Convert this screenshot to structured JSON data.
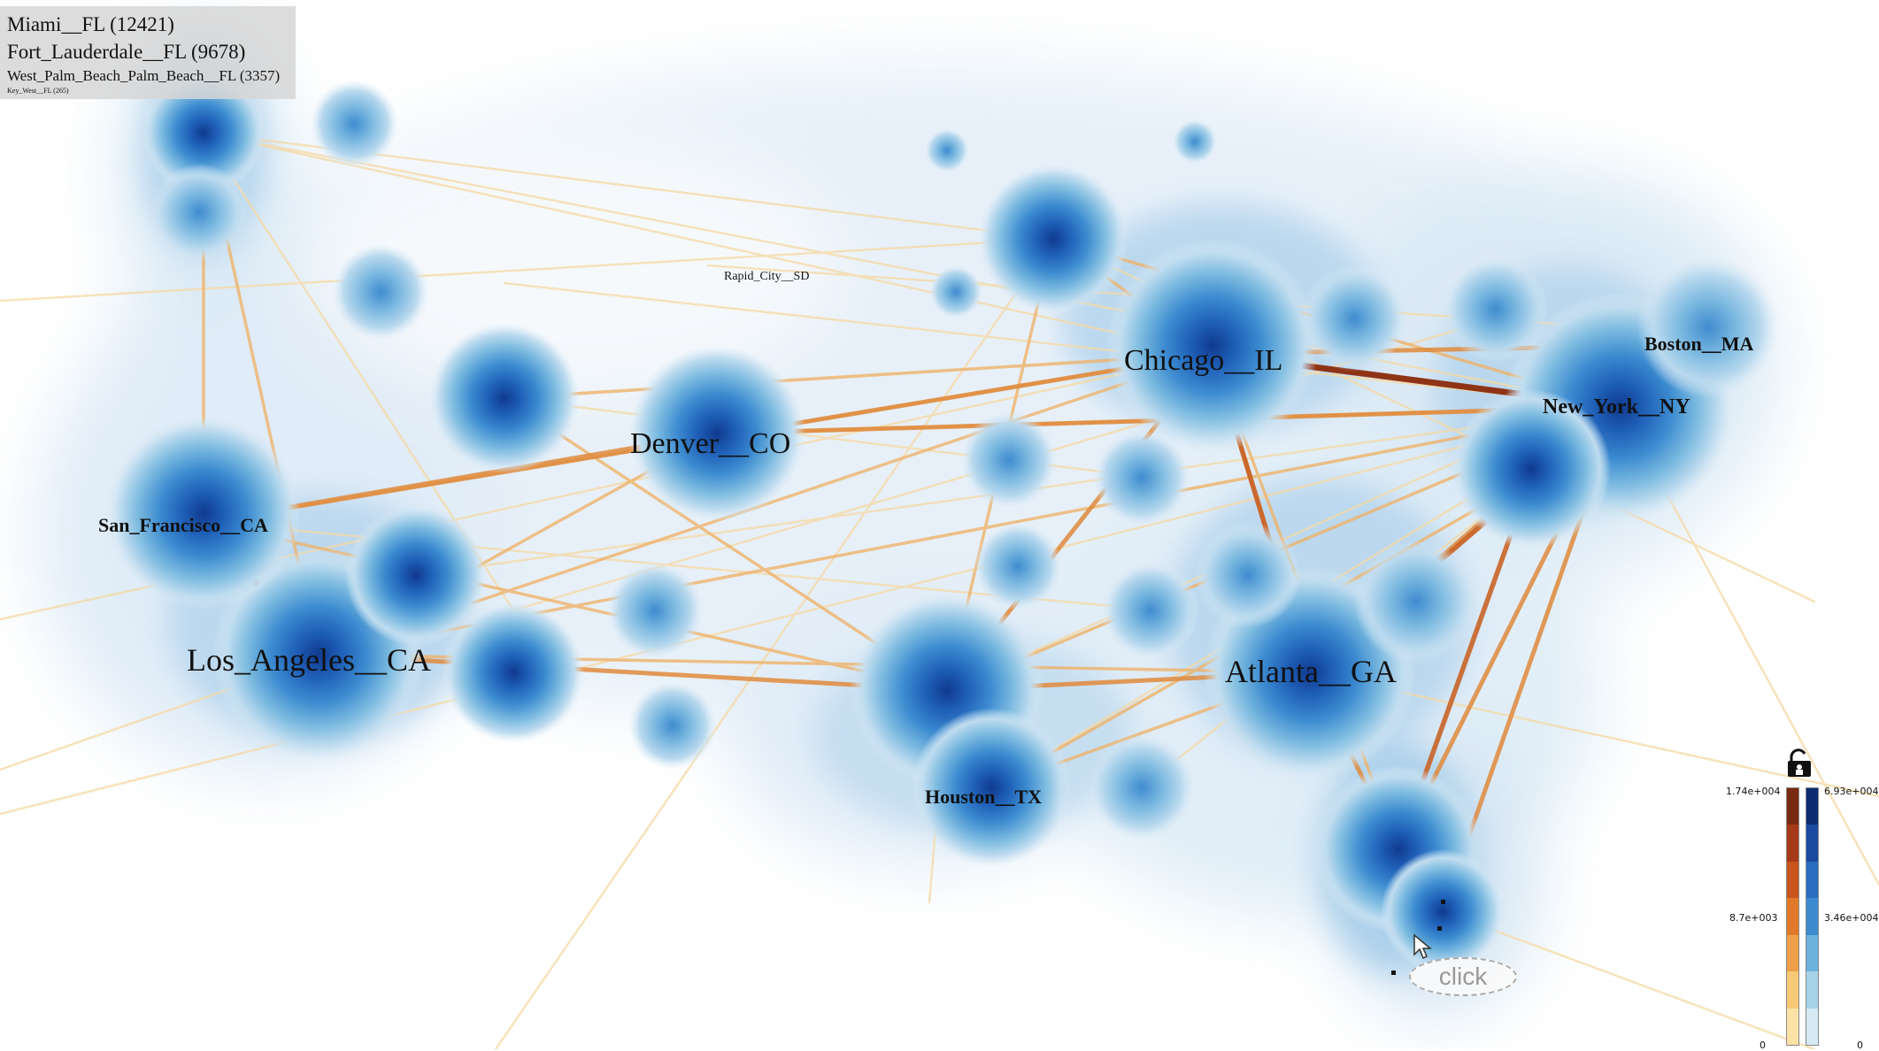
{
  "info_panel": {
    "rows": [
      "Miami__FL (12421)",
      "Fort_Lauderdale__FL (9678)",
      "West_Palm_Beach_Palm_Beach__FL (3357)",
      "Key_West__FL (265)"
    ]
  },
  "cities": {
    "miami": "",
    "rapid_city": "Rapid_City__SD",
    "chicago": "Chicago__IL",
    "boston": "Boston__MA",
    "new_york": "New_York__NY",
    "denver": "Denver__CO",
    "san_francisco": "San_Francisco__CA",
    "los_angeles": "Los_Angeles__CA",
    "atlanta": "Atlanta__GA",
    "houston": "Houston__TX"
  },
  "legend": {
    "edge_scale": {
      "max": "1.74e+004",
      "mid": "8.7e+003",
      "min": "0"
    },
    "density_scale": {
      "max": "6.93e+004",
      "mid": "3.46e+004",
      "min": "0"
    },
    "edge_colors": [
      "#7a2a10",
      "#a63a18",
      "#c9551e",
      "#e07a2a",
      "#efa04a",
      "#f6c977",
      "#fbe3a8"
    ],
    "density_colors": [
      "#0d2b70",
      "#1a4aa0",
      "#2a6cc0",
      "#3d8ad0",
      "#6cb2dc",
      "#a6d2e8",
      "#d6eaf4"
    ],
    "lock_icon": "unlock-icon"
  },
  "overlay": {
    "click_hint": "click",
    "cursor_icon": "mouse-pointer-icon"
  },
  "colors": {
    "density_dark": "#1a4fa8",
    "density_light": "#dbe9f6",
    "edge_strong": "#8a2d12",
    "edge_medium": "#e08a3c",
    "edge_light": "#f6d9a4"
  }
}
